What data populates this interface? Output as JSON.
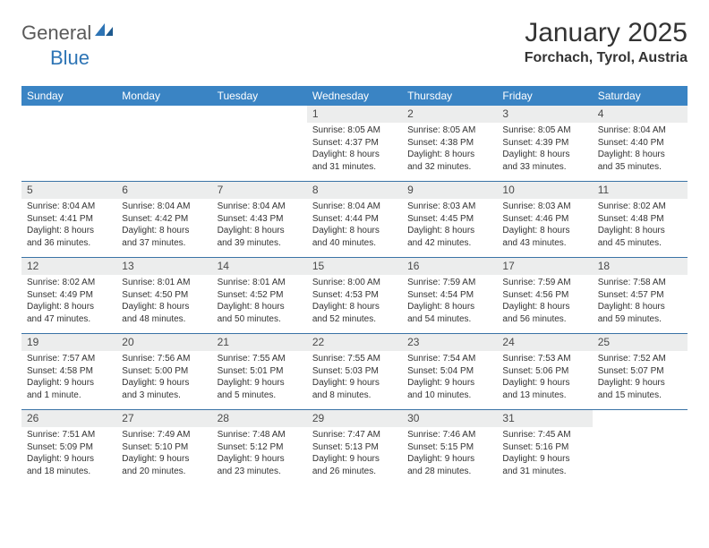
{
  "logo": {
    "part1": "General",
    "part2": "Blue"
  },
  "title": "January 2025",
  "location": "Forchach, Tyrol, Austria",
  "colors": {
    "header_bg": "#3a84c4",
    "divider": "#3a73a6",
    "daynum_bg": "#eceded",
    "logo_gray": "#5a5a5a",
    "logo_blue": "#2d74b5"
  },
  "weekdays": [
    "Sunday",
    "Monday",
    "Tuesday",
    "Wednesday",
    "Thursday",
    "Friday",
    "Saturday"
  ],
  "weeks": [
    [
      null,
      null,
      null,
      {
        "n": "1",
        "sunrise": "8:05 AM",
        "sunset": "4:37 PM",
        "dl1": "Daylight: 8 hours",
        "dl2": "and 31 minutes."
      },
      {
        "n": "2",
        "sunrise": "8:05 AM",
        "sunset": "4:38 PM",
        "dl1": "Daylight: 8 hours",
        "dl2": "and 32 minutes."
      },
      {
        "n": "3",
        "sunrise": "8:05 AM",
        "sunset": "4:39 PM",
        "dl1": "Daylight: 8 hours",
        "dl2": "and 33 minutes."
      },
      {
        "n": "4",
        "sunrise": "8:04 AM",
        "sunset": "4:40 PM",
        "dl1": "Daylight: 8 hours",
        "dl2": "and 35 minutes."
      }
    ],
    [
      {
        "n": "5",
        "sunrise": "8:04 AM",
        "sunset": "4:41 PM",
        "dl1": "Daylight: 8 hours",
        "dl2": "and 36 minutes."
      },
      {
        "n": "6",
        "sunrise": "8:04 AM",
        "sunset": "4:42 PM",
        "dl1": "Daylight: 8 hours",
        "dl2": "and 37 minutes."
      },
      {
        "n": "7",
        "sunrise": "8:04 AM",
        "sunset": "4:43 PM",
        "dl1": "Daylight: 8 hours",
        "dl2": "and 39 minutes."
      },
      {
        "n": "8",
        "sunrise": "8:04 AM",
        "sunset": "4:44 PM",
        "dl1": "Daylight: 8 hours",
        "dl2": "and 40 minutes."
      },
      {
        "n": "9",
        "sunrise": "8:03 AM",
        "sunset": "4:45 PM",
        "dl1": "Daylight: 8 hours",
        "dl2": "and 42 minutes."
      },
      {
        "n": "10",
        "sunrise": "8:03 AM",
        "sunset": "4:46 PM",
        "dl1": "Daylight: 8 hours",
        "dl2": "and 43 minutes."
      },
      {
        "n": "11",
        "sunrise": "8:02 AM",
        "sunset": "4:48 PM",
        "dl1": "Daylight: 8 hours",
        "dl2": "and 45 minutes."
      }
    ],
    [
      {
        "n": "12",
        "sunrise": "8:02 AM",
        "sunset": "4:49 PM",
        "dl1": "Daylight: 8 hours",
        "dl2": "and 47 minutes."
      },
      {
        "n": "13",
        "sunrise": "8:01 AM",
        "sunset": "4:50 PM",
        "dl1": "Daylight: 8 hours",
        "dl2": "and 48 minutes."
      },
      {
        "n": "14",
        "sunrise": "8:01 AM",
        "sunset": "4:52 PM",
        "dl1": "Daylight: 8 hours",
        "dl2": "and 50 minutes."
      },
      {
        "n": "15",
        "sunrise": "8:00 AM",
        "sunset": "4:53 PM",
        "dl1": "Daylight: 8 hours",
        "dl2": "and 52 minutes."
      },
      {
        "n": "16",
        "sunrise": "7:59 AM",
        "sunset": "4:54 PM",
        "dl1": "Daylight: 8 hours",
        "dl2": "and 54 minutes."
      },
      {
        "n": "17",
        "sunrise": "7:59 AM",
        "sunset": "4:56 PM",
        "dl1": "Daylight: 8 hours",
        "dl2": "and 56 minutes."
      },
      {
        "n": "18",
        "sunrise": "7:58 AM",
        "sunset": "4:57 PM",
        "dl1": "Daylight: 8 hours",
        "dl2": "and 59 minutes."
      }
    ],
    [
      {
        "n": "19",
        "sunrise": "7:57 AM",
        "sunset": "4:58 PM",
        "dl1": "Daylight: 9 hours",
        "dl2": "and 1 minute."
      },
      {
        "n": "20",
        "sunrise": "7:56 AM",
        "sunset": "5:00 PM",
        "dl1": "Daylight: 9 hours",
        "dl2": "and 3 minutes."
      },
      {
        "n": "21",
        "sunrise": "7:55 AM",
        "sunset": "5:01 PM",
        "dl1": "Daylight: 9 hours",
        "dl2": "and 5 minutes."
      },
      {
        "n": "22",
        "sunrise": "7:55 AM",
        "sunset": "5:03 PM",
        "dl1": "Daylight: 9 hours",
        "dl2": "and 8 minutes."
      },
      {
        "n": "23",
        "sunrise": "7:54 AM",
        "sunset": "5:04 PM",
        "dl1": "Daylight: 9 hours",
        "dl2": "and 10 minutes."
      },
      {
        "n": "24",
        "sunrise": "7:53 AM",
        "sunset": "5:06 PM",
        "dl1": "Daylight: 9 hours",
        "dl2": "and 13 minutes."
      },
      {
        "n": "25",
        "sunrise": "7:52 AM",
        "sunset": "5:07 PM",
        "dl1": "Daylight: 9 hours",
        "dl2": "and 15 minutes."
      }
    ],
    [
      {
        "n": "26",
        "sunrise": "7:51 AM",
        "sunset": "5:09 PM",
        "dl1": "Daylight: 9 hours",
        "dl2": "and 18 minutes."
      },
      {
        "n": "27",
        "sunrise": "7:49 AM",
        "sunset": "5:10 PM",
        "dl1": "Daylight: 9 hours",
        "dl2": "and 20 minutes."
      },
      {
        "n": "28",
        "sunrise": "7:48 AM",
        "sunset": "5:12 PM",
        "dl1": "Daylight: 9 hours",
        "dl2": "and 23 minutes."
      },
      {
        "n": "29",
        "sunrise": "7:47 AM",
        "sunset": "5:13 PM",
        "dl1": "Daylight: 9 hours",
        "dl2": "and 26 minutes."
      },
      {
        "n": "30",
        "sunrise": "7:46 AM",
        "sunset": "5:15 PM",
        "dl1": "Daylight: 9 hours",
        "dl2": "and 28 minutes."
      },
      {
        "n": "31",
        "sunrise": "7:45 AM",
        "sunset": "5:16 PM",
        "dl1": "Daylight: 9 hours",
        "dl2": "and 31 minutes."
      },
      null
    ]
  ]
}
